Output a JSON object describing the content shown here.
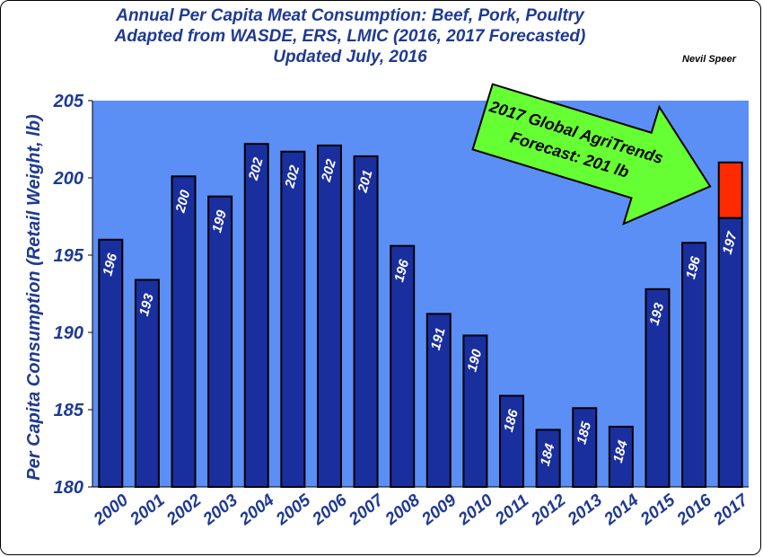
{
  "chart_data": {
    "type": "bar",
    "title_lines": [
      "Annual Per Capita Meat Consumption:  Beef, Pork, Poultry",
      "Adapted from WASDE, ERS, LMIC (2016, 2017 Forecasted)",
      "Updated July, 2016"
    ],
    "author": "Nevil Speer",
    "ylabel": "Per Capita Consumption (Retail Weight, lb)",
    "xlabel": "",
    "ylim": [
      180,
      205
    ],
    "yticks": [
      180,
      185,
      190,
      195,
      200,
      205
    ],
    "categories": [
      "2000",
      "2001",
      "2002",
      "2003",
      "2004",
      "2005",
      "2006",
      "2007",
      "2008",
      "2009",
      "2010",
      "2011",
      "2012",
      "2013",
      "2014",
      "2015",
      "2016",
      "2017"
    ],
    "values": [
      196.0,
      193.4,
      200.1,
      198.8,
      202.2,
      201.7,
      202.1,
      201.4,
      195.6,
      191.2,
      189.8,
      185.9,
      183.7,
      185.1,
      183.9,
      192.8,
      195.8,
      197.4
    ],
    "data_labels": [
      "196",
      "193",
      "200",
      "199",
      "202",
      "202",
      "202",
      "201",
      "196",
      "191",
      "190",
      "186",
      "184",
      "185",
      "184",
      "193",
      "196",
      "197"
    ],
    "forecast_extra": {
      "category": "2017",
      "base": 197.4,
      "top": 201.0,
      "color": "#ff2a00"
    },
    "annotation": {
      "lines": [
        "2017 Global AgriTrends",
        "Forecast: 201 lb"
      ],
      "color": "#66ff33"
    },
    "grid": false,
    "colors": {
      "bar": "#1a2f9e",
      "plot_bg": "#5b8ff5",
      "text": "#1f3a93"
    }
  }
}
